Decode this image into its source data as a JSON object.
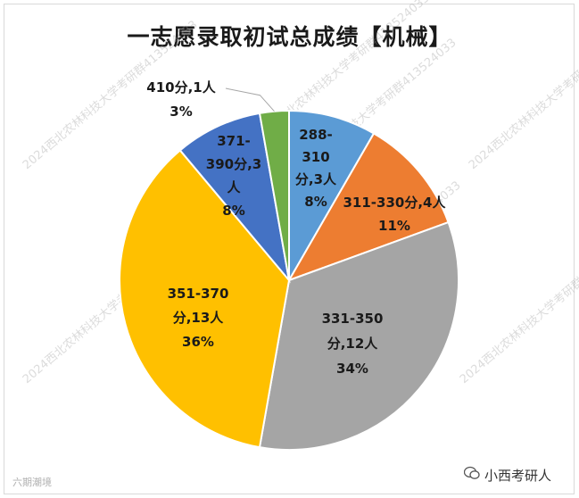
{
  "chart_data": {
    "type": "pie",
    "title": "一志愿录取初试总成绩【机械】",
    "categories": [
      "288-310分",
      "311-330分",
      "331-350分",
      "351-370分",
      "371-390分",
      "410分"
    ],
    "values": [
      3,
      4,
      12,
      13,
      3,
      1
    ],
    "colors": [
      "#5b9bd5",
      "#ed7d31",
      "#a5a5a5",
      "#ffc000",
      "#4472c4",
      "#70ad47"
    ],
    "labels": [
      [
        "288-",
        "310",
        "分,3人",
        "8%"
      ],
      [
        "311-330分,4人",
        "11%"
      ],
      [
        "331-350",
        "分,12人",
        "34%"
      ],
      [
        "351-370",
        "分,13人",
        "36%"
      ],
      [
        "371-",
        "390分,3",
        "人",
        "8%"
      ],
      [
        "410分,1人",
        "3%"
      ]
    ]
  },
  "watermark": "2024西北农林科技大学考研群413524033",
  "footer": {
    "left_text": "六期潮境",
    "right_text": "小西考研人"
  }
}
